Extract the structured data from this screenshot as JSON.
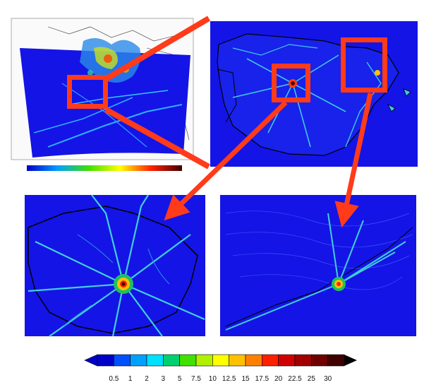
{
  "figure": {
    "panels": [
      {
        "id": "europe-domain"
      },
      {
        "id": "iberian-peninsula"
      },
      {
        "id": "madrid-zoom"
      },
      {
        "id": "barcelona-zoom"
      }
    ]
  },
  "colors": {
    "background_field": "#1414e6",
    "highlight_box": "#ff3b1a",
    "borders": "#000000"
  },
  "colorbar": {
    "labels": [
      "0.5",
      "1",
      "2",
      "3",
      "5",
      "7.5",
      "10",
      "12.5",
      "15",
      "17.5",
      "20",
      "22.5",
      "25",
      "30"
    ],
    "colors": [
      "#0000c8",
      "#0050ff",
      "#00a0ff",
      "#00e0ff",
      "#00d070",
      "#40e000",
      "#b0f000",
      "#ffff00",
      "#ffc000",
      "#ff8000",
      "#ff2000",
      "#d00000",
      "#a00000",
      "#700000",
      "#400000"
    ]
  }
}
